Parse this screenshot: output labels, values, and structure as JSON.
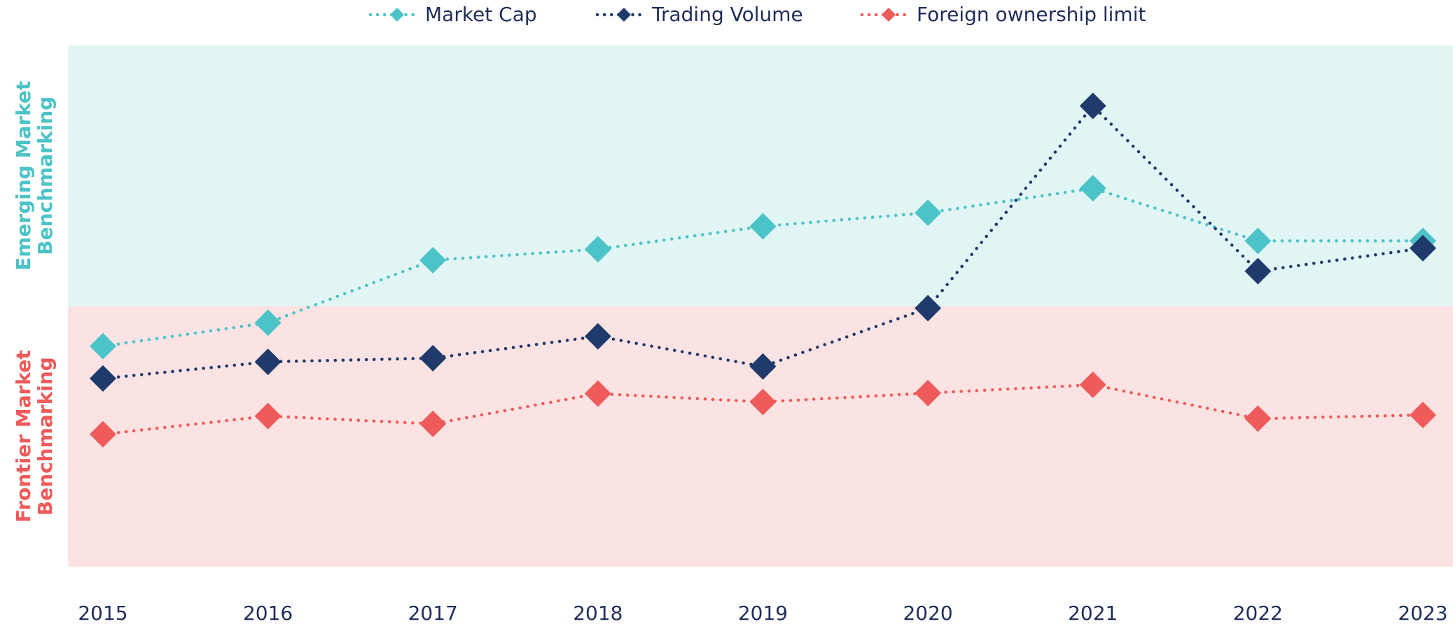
{
  "chart_data": {
    "type": "line",
    "categories": [
      "2015",
      "2016",
      "2017",
      "2018",
      "2019",
      "2020",
      "2021",
      "2022",
      "2023"
    ],
    "ylim": [
      0,
      100
    ],
    "bands": [
      {
        "label": [
          "Emerging Market",
          "Benchmarking"
        ],
        "range": [
          50,
          100
        ],
        "color": "#e0f5f4",
        "label_color": "#4cc3c7"
      },
      {
        "label": [
          "Frontier Market",
          "Benchmarking"
        ],
        "range": [
          0,
          50
        ],
        "color": "#fbe3e3",
        "label_color": "#ef5a5a"
      }
    ],
    "series": [
      {
        "name": "Market Cap",
        "color": "#4cc3c7",
        "values": [
          42.3,
          46.8,
          58.8,
          60.9,
          65.3,
          67.9,
          72.6,
          62.5,
          62.5
        ]
      },
      {
        "name": "Trading Volume",
        "color": "#1f3a6b",
        "values": [
          36.1,
          39.3,
          40.0,
          44.2,
          38.4,
          49.6,
          88.4,
          56.7,
          61.1
        ]
      },
      {
        "name": "Foreign ownership limit",
        "color": "#ef5a5a",
        "values": [
          25.4,
          28.9,
          27.4,
          33.2,
          31.6,
          33.3,
          34.9,
          28.4,
          29.1
        ]
      }
    ],
    "legend": "top",
    "grid": false
  }
}
